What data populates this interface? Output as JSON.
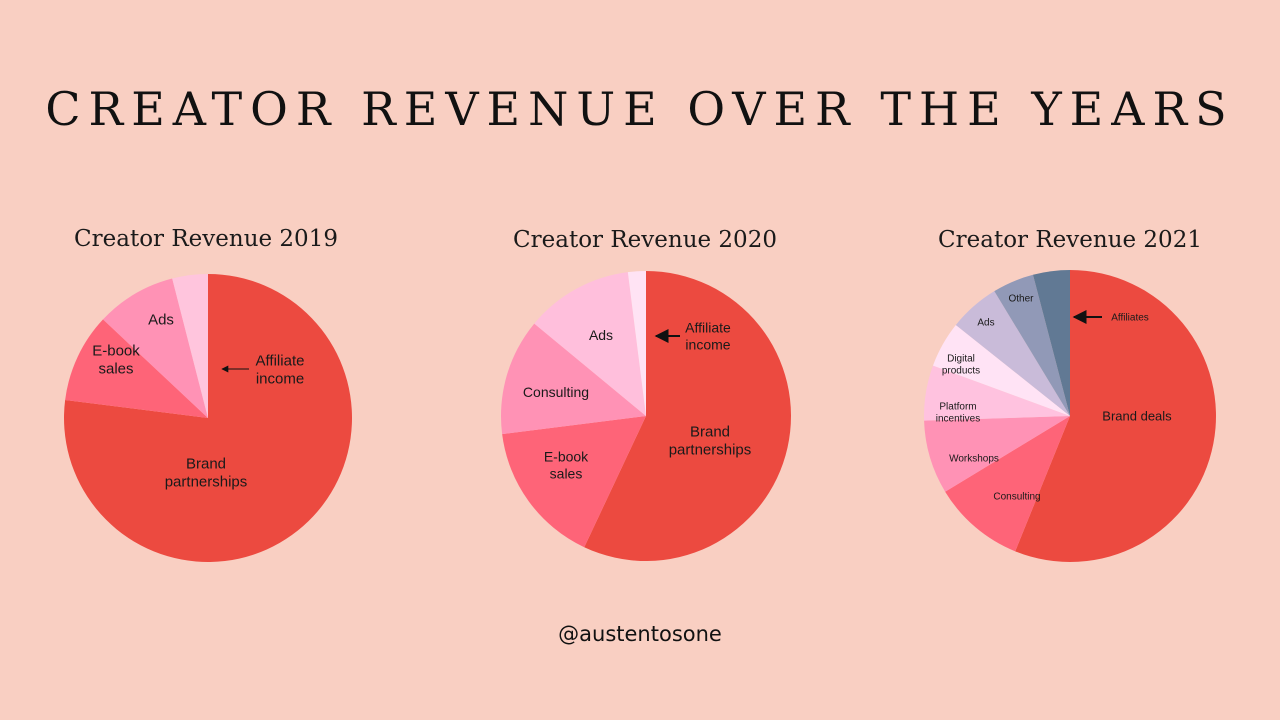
{
  "title": "CREATOR REVENUE OVER THE YEARS",
  "footer_handle": "@austentosone",
  "chart_data": [
    {
      "type": "pie",
      "title": "Creator Revenue 2019",
      "slices": [
        {
          "label": "Brand partnerships",
          "value": 77,
          "color": "#ec4a40"
        },
        {
          "label": "E-book sales",
          "value": 10,
          "color": "#fe6478"
        },
        {
          "label": "Ads",
          "value": 9,
          "color": "#ff92b5"
        },
        {
          "label": "Affiliate income",
          "value": 4,
          "color": "#ffc5dd"
        }
      ],
      "annotations": [
        {
          "text": "Brand partnerships",
          "lines": [
            "Brand",
            "partnerships"
          ]
        },
        {
          "text": "E-book sales",
          "lines": [
            "E-book",
            "sales"
          ]
        },
        {
          "text": "Ads",
          "lines": [
            "Ads"
          ]
        },
        {
          "text": "Affiliate income",
          "lines": [
            "Affiliate",
            "income"
          ]
        }
      ]
    },
    {
      "type": "pie",
      "title": "Creator Revenue 2020",
      "slices": [
        {
          "label": "Brand partnerships",
          "value": 57,
          "color": "#ec4a40"
        },
        {
          "label": "E-book sales",
          "value": 16,
          "color": "#fe6478"
        },
        {
          "label": "Consulting",
          "value": 13,
          "color": "#ff92b5"
        },
        {
          "label": "Ads",
          "value": 12,
          "color": "#ffbfdc"
        },
        {
          "label": "Affiliate income",
          "value": 2,
          "color": "#ffe3f4"
        }
      ],
      "annotations": [
        {
          "text": "Brand partnerships",
          "lines": [
            "Brand",
            "partnerships"
          ]
        },
        {
          "text": "E-book sales",
          "lines": [
            "E-book",
            "sales"
          ]
        },
        {
          "text": "Consulting",
          "lines": [
            "Consulting"
          ]
        },
        {
          "text": "Ads",
          "lines": [
            "Ads"
          ]
        },
        {
          "text": "Affiliate income",
          "lines": [
            "Affiliate",
            "income"
          ]
        }
      ]
    },
    {
      "type": "pie",
      "title": "Creator Revenue 2021",
      "slices": [
        {
          "label": "Brand deals",
          "value": 55,
          "color": "#ec4a40"
        },
        {
          "label": "Consulting",
          "value": 10,
          "color": "#fe6478"
        },
        {
          "label": "Workshops",
          "value": 8,
          "color": "#ff92b5"
        },
        {
          "label": "Platform incentives",
          "value": 6,
          "color": "#ffc2df"
        },
        {
          "label": "Digital products",
          "value": 5,
          "color": "#ffe3f5"
        },
        {
          "label": "Ads",
          "value": 5.5,
          "color": "#c9bbd9"
        },
        {
          "label": "Other",
          "value": 4.5,
          "color": "#9199b7"
        },
        {
          "label": "Affiliates",
          "value": 4,
          "color": "#617994"
        }
      ],
      "annotations": [
        {
          "text": "Brand deals",
          "lines": [
            "Brand deals"
          ]
        },
        {
          "text": "Consulting",
          "lines": [
            "Consulting"
          ]
        },
        {
          "text": "Workshops",
          "lines": [
            "Workshops"
          ]
        },
        {
          "text": "Platform incentives",
          "lines": [
            "Platform",
            "incentives"
          ]
        },
        {
          "text": "Digital products",
          "lines": [
            "Digital",
            "products"
          ]
        },
        {
          "text": "Ads",
          "lines": [
            "Ads"
          ]
        },
        {
          "text": "Other",
          "lines": [
            "Other"
          ]
        },
        {
          "text": "Affiliates",
          "lines": [
            "Affiliates"
          ]
        }
      ]
    }
  ]
}
